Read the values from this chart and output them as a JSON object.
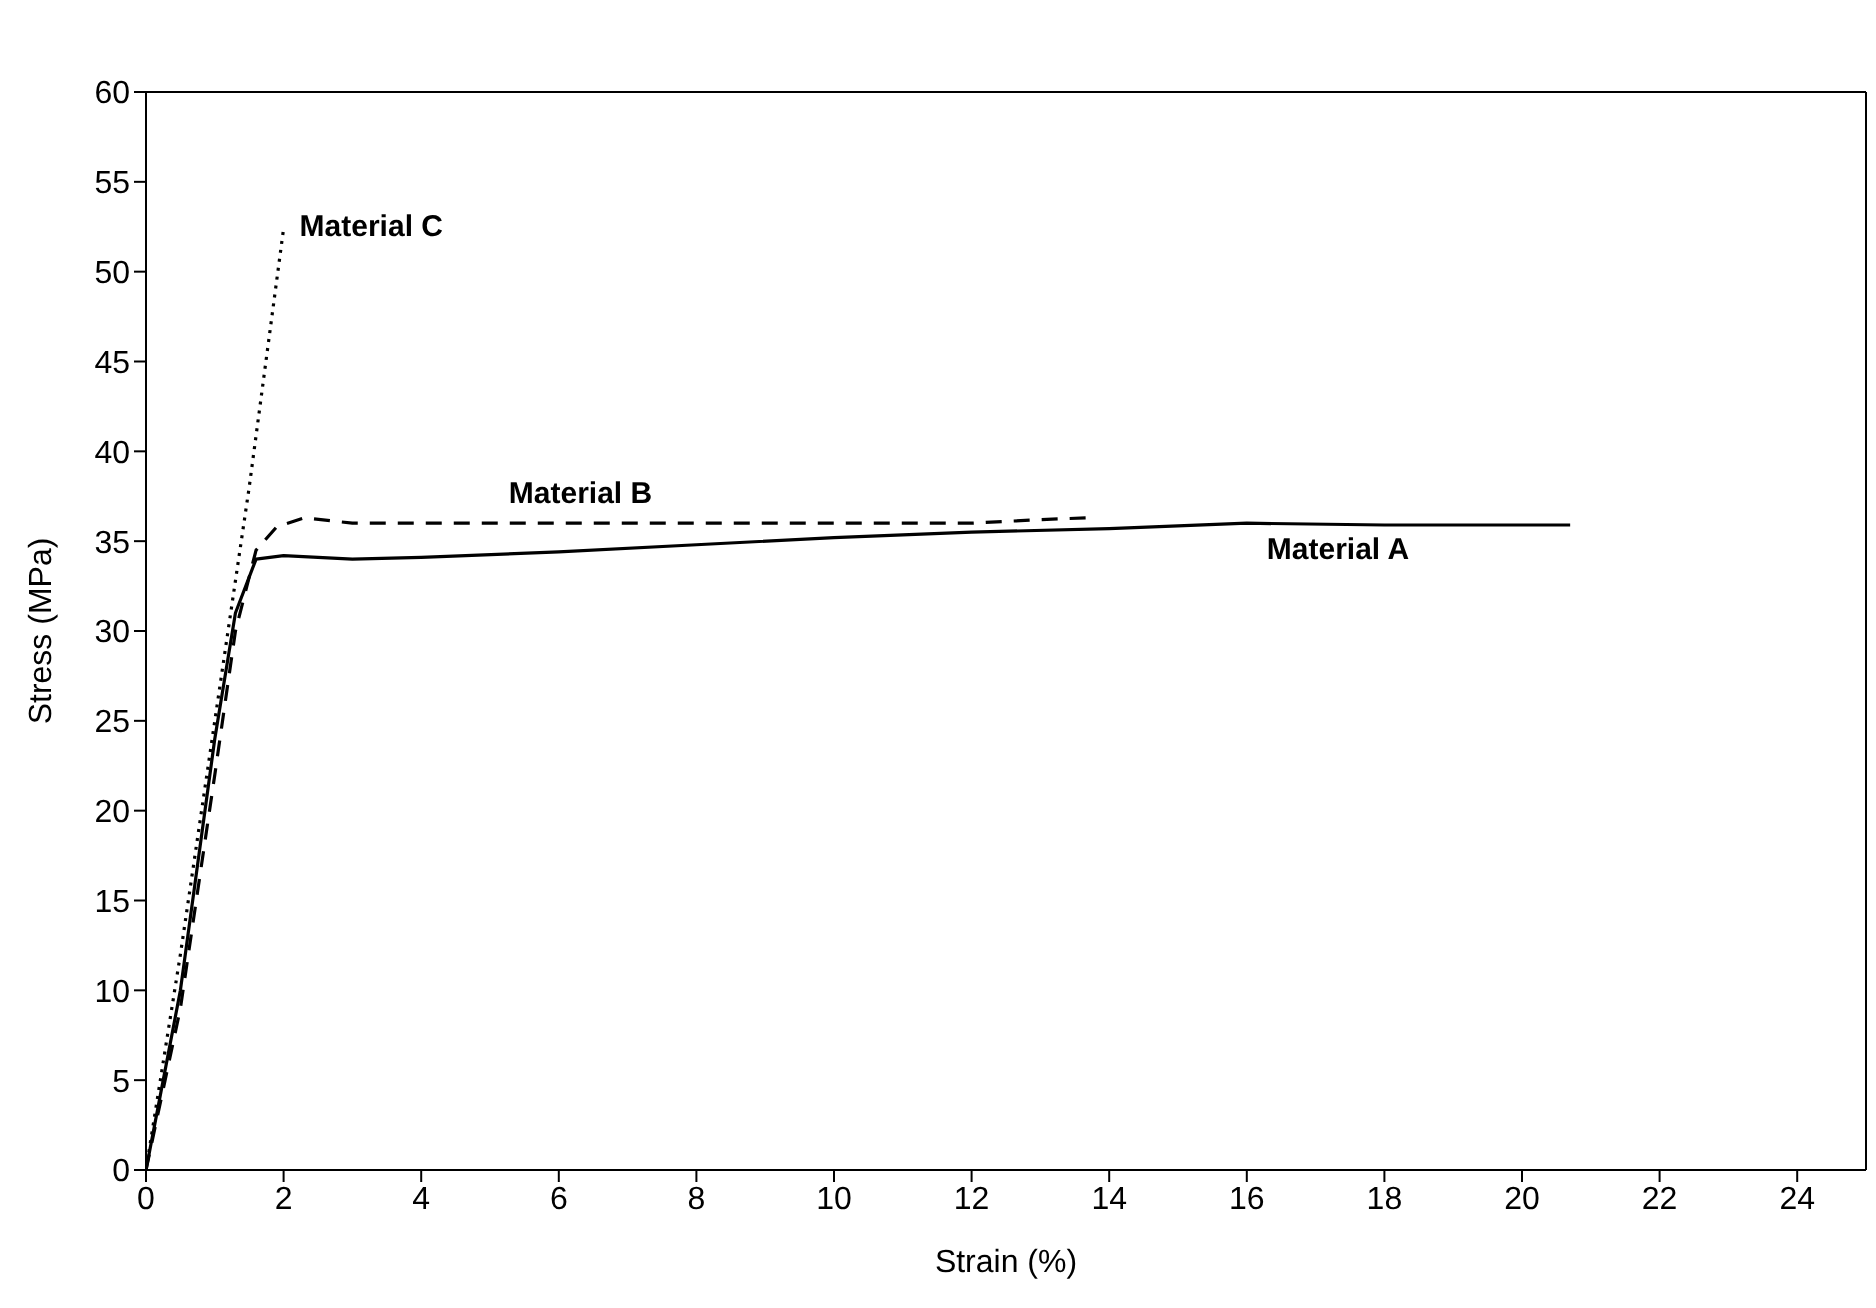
{
  "chart_data": {
    "type": "line",
    "xlabel": "Strain (%)",
    "ylabel": "Stress (MPa)",
    "xlim": [
      0,
      25
    ],
    "xticks": [
      0,
      2,
      4,
      6,
      8,
      10,
      12,
      14,
      16,
      18,
      20,
      22,
      24
    ],
    "ylim": [
      0,
      60
    ],
    "yticks": [
      0,
      5,
      10,
      15,
      20,
      25,
      30,
      35,
      40,
      45,
      50,
      55,
      60
    ],
    "marker": "none",
    "series": [
      {
        "name": "Material A",
        "color": "#000000",
        "line_style": "solid",
        "x": [
          0,
          0.5,
          1,
          1.3,
          1.6,
          2,
          3,
          4,
          6,
          8,
          10,
          12,
          14,
          16,
          18,
          20.7
        ],
        "values": [
          0,
          10,
          24,
          31,
          34,
          34.2,
          34,
          34.1,
          34.4,
          34.8,
          35.2,
          35.5,
          35.7,
          36,
          35.9,
          35.9
        ]
      },
      {
        "name": "Material B",
        "color": "#000000",
        "line_style": "dashed",
        "x": [
          0,
          0.5,
          1,
          1.3,
          1.6,
          1.9,
          2.3,
          3,
          6,
          10,
          12,
          13,
          13.7
        ],
        "values": [
          0,
          9,
          22,
          30,
          34.5,
          35.8,
          36.3,
          36,
          36,
          36,
          36,
          36.2,
          36.3
        ]
      },
      {
        "name": "Material C",
        "color": "#000000",
        "line_style": "dotted",
        "x": [
          0,
          0.5,
          1,
          1.5,
          2
        ],
        "values": [
          0,
          12,
          25,
          38,
          52.4
        ]
      }
    ]
  }
}
